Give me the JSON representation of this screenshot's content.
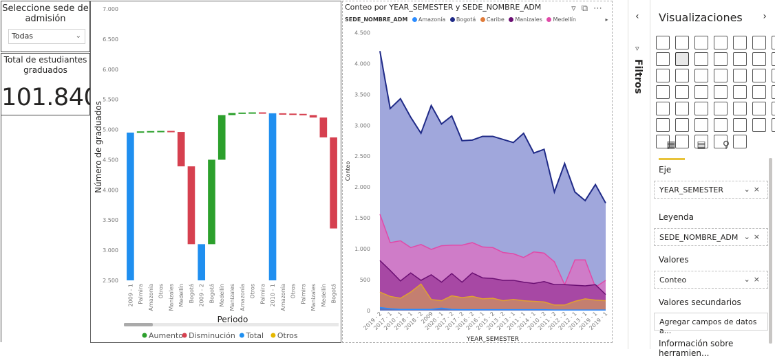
{
  "slicer": {
    "title": "Seleccione sede de admisión",
    "selected": "Todas"
  },
  "kpi": {
    "label": "Total de estudiantes graduados",
    "value": "101.840"
  },
  "waterfall": {
    "ylabel": "Número de graduados",
    "xlabel": "Periodo",
    "y_ticks": [
      "7.000",
      "6.500",
      "6.000",
      "5.500",
      "5.000",
      "4.500",
      "4.000",
      "3.500",
      "3.000",
      "2.500"
    ],
    "legend": [
      {
        "label": "Aumento",
        "color": "#2ca02c"
      },
      {
        "label": "Disminución",
        "color": "#d6404f"
      },
      {
        "label": "Total",
        "color": "#1f8ff0"
      },
      {
        "label": "Otros",
        "color": "#e6b800"
      }
    ]
  },
  "area": {
    "title": "Conteo por YEAR_SEMESTER y SEDE_NOMBRE_ADM",
    "legend_title": "SEDE_NOMBRE_ADM",
    "legend": [
      {
        "label": "Amazonía",
        "color": "#2b8cff"
      },
      {
        "label": "Bogotá",
        "color": "#1f2a87"
      },
      {
        "label": "Caribe",
        "color": "#e07b39"
      },
      {
        "label": "Manizales",
        "color": "#6b0f73"
      },
      {
        "label": "Medellín",
        "color": "#e04aa8"
      }
    ],
    "ylabel": "Conteo",
    "xlabel": "YEAR_SEMESTER"
  },
  "chart_data": [
    {
      "type": "bar",
      "title": "",
      "xlabel": "Periodo",
      "ylabel": "Número de graduados",
      "ylim": [
        2500,
        7000
      ],
      "categories": [
        "2009 - 1",
        "Palmira",
        "Amazonía",
        "Otros",
        "Manizales",
        "Medellín",
        "Bogotá",
        "2009 - 2",
        "Bogotá",
        "Medellín",
        "Manizales",
        "Amazonía",
        "Otros",
        "Palmira",
        "2010 - 1",
        "Amazonía",
        "Otros",
        "Palmira",
        "Manizales",
        "Medellín",
        "Bogotá"
      ],
      "bars": [
        {
          "kind": "total",
          "from": 2500,
          "to": 4950
        },
        {
          "kind": "up",
          "from": 4950,
          "to": 4970
        },
        {
          "kind": "up",
          "from": 4970,
          "to": 4975
        },
        {
          "kind": "up",
          "from": 4975,
          "to": 4978
        },
        {
          "kind": "down",
          "from": 4978,
          "to": 4960
        },
        {
          "kind": "down",
          "from": 4960,
          "to": 4390
        },
        {
          "kind": "down",
          "from": 4390,
          "to": 3100
        },
        {
          "kind": "total",
          "from": 2500,
          "to": 3100
        },
        {
          "kind": "up",
          "from": 3100,
          "to": 4500
        },
        {
          "kind": "up",
          "from": 4500,
          "to": 5240
        },
        {
          "kind": "up",
          "from": 5240,
          "to": 5275
        },
        {
          "kind": "up",
          "from": 5275,
          "to": 5282
        },
        {
          "kind": "up",
          "from": 5282,
          "to": 5285
        },
        {
          "kind": "down",
          "from": 5285,
          "to": 5270
        },
        {
          "kind": "total",
          "from": 2500,
          "to": 5270
        },
        {
          "kind": "down",
          "from": 5270,
          "to": 5265
        },
        {
          "kind": "down",
          "from": 5265,
          "to": 5260
        },
        {
          "kind": "down",
          "from": 5260,
          "to": 5240
        },
        {
          "kind": "down",
          "from": 5240,
          "to": 5200
        },
        {
          "kind": "down",
          "from": 5200,
          "to": 4870
        },
        {
          "kind": "down",
          "from": 4870,
          "to": 3360
        }
      ]
    },
    {
      "type": "area",
      "title": "Conteo por YEAR_SEMESTER y SEDE_NOMBRE_ADM",
      "xlabel": "YEAR_SEMESTER",
      "ylabel": "Conteo",
      "ylim": [
        0,
        4500
      ],
      "y_ticks": [
        0,
        500,
        1000,
        1500,
        2000,
        2500,
        3000,
        3500,
        4000,
        4500
      ],
      "x": [
        "2019 - 2",
        "2017 - 1",
        "2010 - 1",
        "2018 - 1",
        "2018 - 2",
        "2009",
        "2020 - 1",
        "2017 - 2",
        "2017 - 2",
        "2016 - 2",
        "2016 - 1",
        "2015 - 2",
        "2013 - 2",
        "2013 - 1",
        "2011 - 1",
        "2014 - 1",
        "2010 - 2",
        "2011 - 2",
        "2012 - 2",
        "2012 - 1",
        "2013 - 1",
        "2019 - 1",
        "2019 - 1"
      ],
      "series": [
        {
          "name": "Bogotá",
          "values": [
            4200,
            3270,
            3430,
            3130,
            2870,
            3320,
            3020,
            3150,
            2750,
            2760,
            2820,
            2820,
            2770,
            2720,
            2870,
            2550,
            2610,
            1920,
            2380,
            1920,
            1780,
            2040,
            1740
          ]
        },
        {
          "name": "Medellín",
          "values": [
            1560,
            1100,
            1130,
            1020,
            1070,
            990,
            1050,
            1060,
            1060,
            1100,
            1030,
            1020,
            940,
            920,
            860,
            950,
            930,
            790,
            420,
            820,
            820,
            380,
            490
          ]
        },
        {
          "name": "Manizales",
          "values": [
            810,
            650,
            480,
            610,
            490,
            580,
            460,
            600,
            460,
            610,
            530,
            520,
            490,
            490,
            460,
            440,
            470,
            420,
            420,
            410,
            400,
            420,
            260
          ]
        },
        {
          "name": "Caribe",
          "values": [
            300,
            230,
            200,
            300,
            430,
            180,
            160,
            240,
            210,
            230,
            190,
            200,
            160,
            180,
            160,
            150,
            140,
            90,
            90,
            150,
            190,
            170,
            160
          ]
        },
        {
          "name": "Amazonía",
          "values": [
            50,
            30,
            20,
            20,
            20,
            20,
            40,
            20,
            15,
            15,
            15,
            15,
            15,
            15,
            15,
            15,
            15,
            10,
            10,
            10,
            10,
            10,
            10
          ]
        }
      ]
    }
  ],
  "viz_pane": {
    "title": "Visualizaciones",
    "wells": [
      {
        "title": "Eje",
        "value": "YEAR_SEMESTER"
      },
      {
        "title": "Leyenda",
        "value": "SEDE_NOMBRE_ADM"
      },
      {
        "title": "Valores",
        "value": "Conteo"
      },
      {
        "title": "Valores secundarios",
        "value": "Agregar campos de datos a..."
      }
    ],
    "tooltip_title": "Información sobre herramien..."
  },
  "filters_pane": {
    "label": "Filtros"
  }
}
